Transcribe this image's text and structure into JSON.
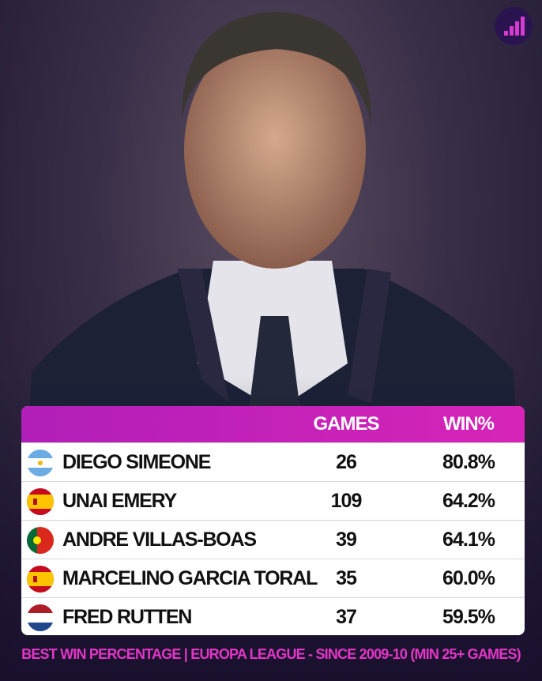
{
  "table": {
    "columns": [
      "GAMES",
      "WIN%"
    ],
    "rows": [
      [
        "DIEGO SIMEONE",
        "26",
        "80.8%"
      ],
      [
        "UNAI EMERY",
        "109",
        "64.2%"
      ],
      [
        "ANDRE VILLAS-BOAS",
        "39",
        "64.1%"
      ],
      [
        "MARCELINO GARCIA TORAL",
        "35",
        "60.0%"
      ],
      [
        "FRED RUTTEN",
        "37",
        "59.5%"
      ]
    ]
  },
  "footer": {
    "caption": "BEST WIN PERCENTAGE | EUROPA LEAGUE - SINCE 2009-10 (MIN 25+ GAMES)"
  }
}
